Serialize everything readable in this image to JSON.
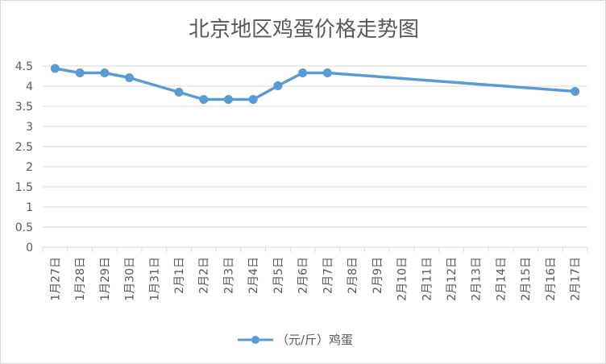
{
  "chart_data": {
    "type": "line",
    "title": "北京地区鸡蛋价格走势图",
    "xlabel": "",
    "ylabel": "",
    "ylim": [
      0,
      4.5
    ],
    "yticks": [
      "0",
      "0.5",
      "1",
      "1.5",
      "2",
      "2.5",
      "3",
      "3.5",
      "4",
      "4.5"
    ],
    "categories": [
      "1月27日",
      "1月28日",
      "1月29日",
      "1月30日",
      "1月31日",
      "2月1日",
      "2月2日",
      "2月3日",
      "2月4日",
      "2月5日",
      "2月6日",
      "2月7日",
      "2月8日",
      "2月9日",
      "2月10日",
      "2月11日",
      "2月12日",
      "2月13日",
      "2月14日",
      "2月15日",
      "2月16日",
      "2月17日"
    ],
    "series": [
      {
        "name": "（元/斤）鸡蛋",
        "color": "#5b9bd5",
        "values": [
          4.44,
          4.33,
          4.33,
          4.21,
          null,
          3.85,
          3.67,
          3.67,
          3.67,
          4.01,
          4.33,
          4.33,
          null,
          null,
          null,
          null,
          null,
          null,
          null,
          null,
          null,
          3.87
        ]
      }
    ],
    "grid": true,
    "legend": "bottom"
  }
}
